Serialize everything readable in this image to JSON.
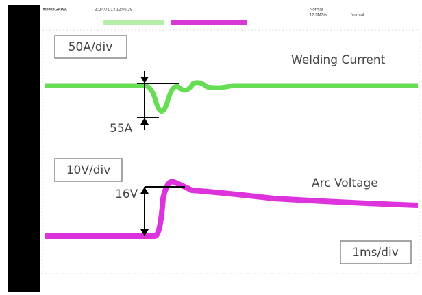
{
  "header": {
    "brand": "YOKOGAWA",
    "timestamp": "2014/01/13 12:56:29",
    "mode": "Normal",
    "sample_rate": "12.5MS/s",
    "trigger_mode": "Normal"
  },
  "annotations": {
    "current_scale": "50A/div",
    "current_label": "Welding Current",
    "current_dip": "55A",
    "voltage_scale": "10V/div",
    "voltage_label": "Arc Voltage",
    "voltage_rise": "16V",
    "time_scale": "1ms/div"
  }
}
